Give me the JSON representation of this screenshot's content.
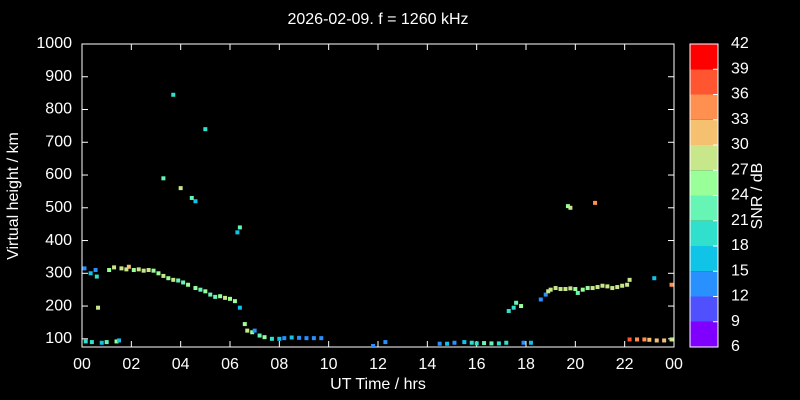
{
  "chart_data": {
    "type": "scatter",
    "title": "2026-02-09. f = 1260 kHz",
    "xlabel": "UT Time / hrs",
    "ylabel": "Virtual height / km",
    "xlim": [
      0,
      24
    ],
    "xticks": [
      {
        "value": 0,
        "label": "00"
      },
      {
        "value": 2,
        "label": "02"
      },
      {
        "value": 4,
        "label": "04"
      },
      {
        "value": 6,
        "label": "06"
      },
      {
        "value": 8,
        "label": "08"
      },
      10,
      12,
      14,
      16,
      18,
      20,
      22,
      {
        "value": 24,
        "label": "00"
      }
    ],
    "ylim": [
      75,
      1000
    ],
    "yticks": [
      100,
      200,
      300,
      400,
      500,
      600,
      700,
      800,
      900,
      1000
    ],
    "colorbar": {
      "label": "SNR / dB",
      "lim": [
        6,
        42
      ],
      "ticks": [
        6,
        9,
        12,
        15,
        18,
        21,
        24,
        27,
        30,
        33,
        36,
        39,
        42
      ],
      "colors": [
        "#8000ff",
        "#5050ff",
        "#2890ff",
        "#10c4e8",
        "#30e0cc",
        "#66f5b4",
        "#99ff99",
        "#c8e68a",
        "#f5c070",
        "#ff9050",
        "#ff5530",
        "#ff0000"
      ]
    },
    "x": [
      0.15,
      0.4,
      0.8,
      1.0,
      1.4,
      1.5,
      0.1,
      0.35,
      0.55,
      0.6,
      0.65,
      1.1,
      1.3,
      1.6,
      1.8,
      1.9,
      2.1,
      2.3,
      2.5,
      2.7,
      2.9,
      3.1,
      3.3,
      3.5,
      3.7,
      3.9,
      4.1,
      4.3,
      4.6,
      4.8,
      5.0,
      5.2,
      5.4,
      5.6,
      5.8,
      6.0,
      6.2,
      6.4,
      3.3,
      3.7,
      4.0,
      4.45,
      4.6,
      5.0,
      6.3,
      6.4,
      6.6,
      6.7,
      6.9,
      7.0,
      7.2,
      7.4,
      7.7,
      8.0,
      8.2,
      8.5,
      8.8,
      9.1,
      9.4,
      9.7,
      11.8,
      12.3,
      14.5,
      14.8,
      15.1,
      15.5,
      15.8,
      16.0,
      16.3,
      16.6,
      16.9,
      17.2,
      17.9,
      18.2,
      17.3,
      17.5,
      17.6,
      17.8,
      18.6,
      18.8,
      18.9,
      19.0,
      19.2,
      19.4,
      19.6,
      19.8,
      20.0,
      20.1,
      20.3,
      20.5,
      20.7,
      20.9,
      21.1,
      21.3,
      21.5,
      21.7,
      21.9,
      22.1,
      22.2,
      19.7,
      19.8,
      20.8,
      23.2,
      23.9,
      22.2,
      22.5,
      22.8,
      23.0,
      23.3,
      23.6,
      23.9
    ],
    "y": [
      92,
      90,
      88,
      90,
      92,
      95,
      315,
      300,
      310,
      290,
      195,
      310,
      318,
      315,
      312,
      320,
      310,
      312,
      308,
      310,
      308,
      300,
      292,
      285,
      280,
      278,
      272,
      265,
      255,
      250,
      245,
      235,
      228,
      230,
      225,
      222,
      215,
      195,
      590,
      845,
      560,
      530,
      520,
      740,
      425,
      440,
      145,
      125,
      120,
      125,
      110,
      105,
      100,
      100,
      102,
      104,
      103,
      102,
      102,
      102,
      78,
      90,
      85,
      85,
      88,
      90,
      88,
      86,
      87,
      86,
      86,
      88,
      88,
      88,
      185,
      195,
      210,
      200,
      220,
      235,
      245,
      250,
      255,
      252,
      252,
      254,
      252,
      240,
      250,
      255,
      255,
      258,
      262,
      260,
      255,
      258,
      262,
      265,
      280,
      505,
      500,
      515,
      285,
      265,
      98,
      98,
      98,
      97,
      95,
      95,
      98
    ],
    "snr": [
      18,
      18,
      15,
      21,
      24,
      15,
      12,
      15,
      12,
      18,
      27,
      24,
      27,
      27,
      27,
      30,
      24,
      27,
      27,
      27,
      24,
      24,
      27,
      24,
      27,
      21,
      21,
      24,
      24,
      21,
      24,
      21,
      21,
      24,
      27,
      24,
      24,
      15,
      21,
      18,
      27,
      21,
      15,
      18,
      15,
      21,
      24,
      27,
      24,
      12,
      21,
      24,
      18,
      15,
      12,
      15,
      12,
      12,
      12,
      12,
      12,
      12,
      12,
      15,
      12,
      15,
      18,
      18,
      21,
      21,
      18,
      18,
      12,
      15,
      18,
      18,
      21,
      24,
      12,
      12,
      27,
      27,
      27,
      27,
      27,
      27,
      24,
      21,
      24,
      24,
      27,
      27,
      27,
      27,
      27,
      27,
      27,
      27,
      27,
      24,
      27,
      33,
      15,
      33,
      36,
      33,
      33,
      30,
      30,
      30,
      27
    ]
  }
}
